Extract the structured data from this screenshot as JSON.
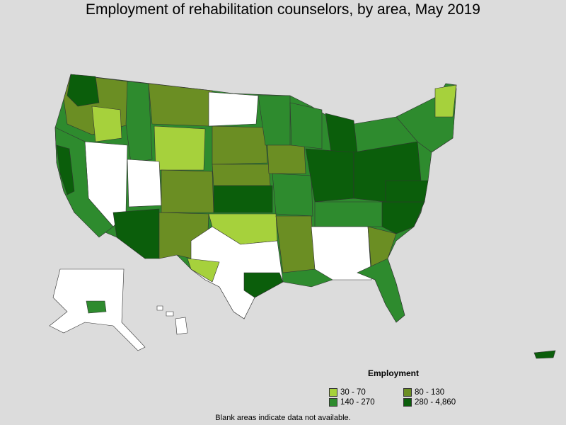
{
  "title": "Employment of rehabilitation counselors, by area, May 2019",
  "footnote": "Blank areas indicate data not available.",
  "legend": {
    "title": "Employment",
    "items": [
      {
        "label": "30 - 70",
        "color": "#a6d13c"
      },
      {
        "label": "80 - 130",
        "color": "#6b8e23"
      },
      {
        "label": "140 - 270",
        "color": "#2e8b2e"
      },
      {
        "label": "280 - 4,860",
        "color": "#0b5e0b"
      }
    ]
  },
  "colors": {
    "background": "#dcdcdc",
    "no_data": "#ffffff",
    "border": "#333333"
  }
}
